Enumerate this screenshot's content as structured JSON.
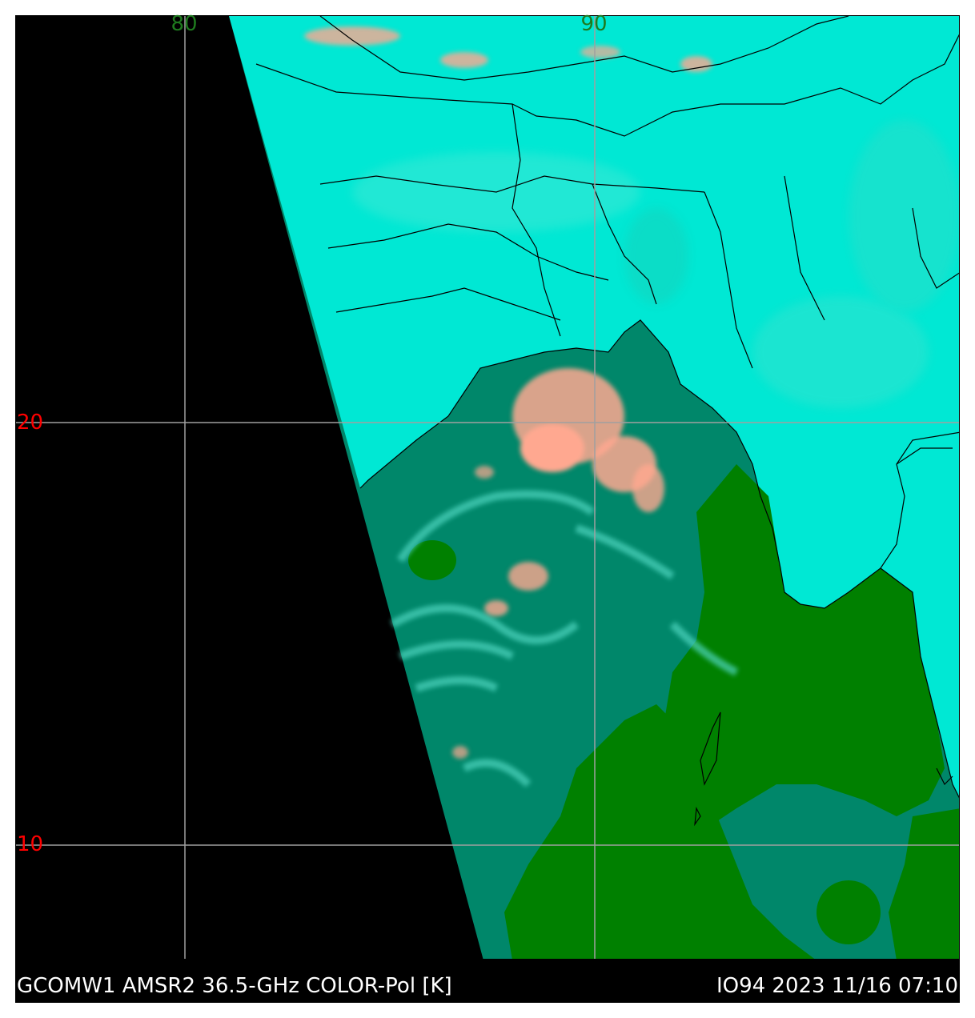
{
  "map": {
    "longitude_labels": [
      "80",
      "90"
    ],
    "latitude_labels": [
      "20",
      "10"
    ],
    "colors": {
      "land": "#00e8d4",
      "ocean": "#00876a",
      "precip_ocean": "#008000",
      "convection": "#ffa890",
      "no_data": "#000000",
      "gridline": "#a0a0a0",
      "coastline": "#000000"
    }
  },
  "caption": {
    "left": "GCOMW1 AMSR2 36.5-GHz COLOR-Pol [K]",
    "right": "IO94 2023 11/16 07:10"
  }
}
